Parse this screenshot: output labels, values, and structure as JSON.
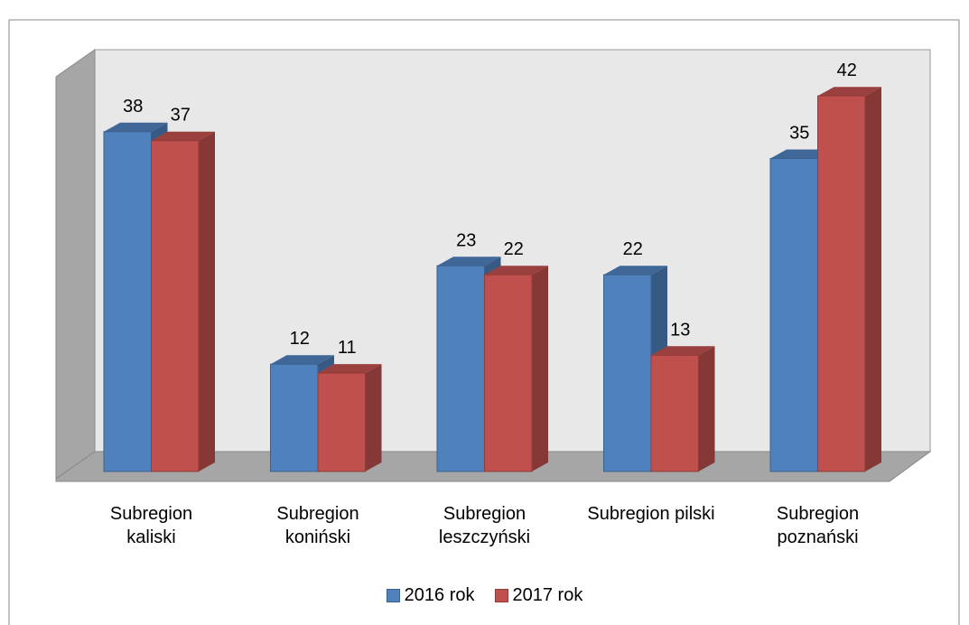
{
  "chart_data": {
    "type": "bar3d",
    "categories": [
      "Subregion kaliski",
      "Subregion koniński",
      "Subregion leszczyński",
      "Subregion pilski",
      "Subregion poznański"
    ],
    "series": [
      {
        "name": "2016 rok",
        "color": "#4f81bd",
        "values": [
          38,
          12,
          23,
          22,
          35
        ]
      },
      {
        "name": "2017 rok",
        "color": "#c0504d",
        "values": [
          37,
          11,
          22,
          13,
          42
        ]
      }
    ],
    "legend": "bottom"
  }
}
